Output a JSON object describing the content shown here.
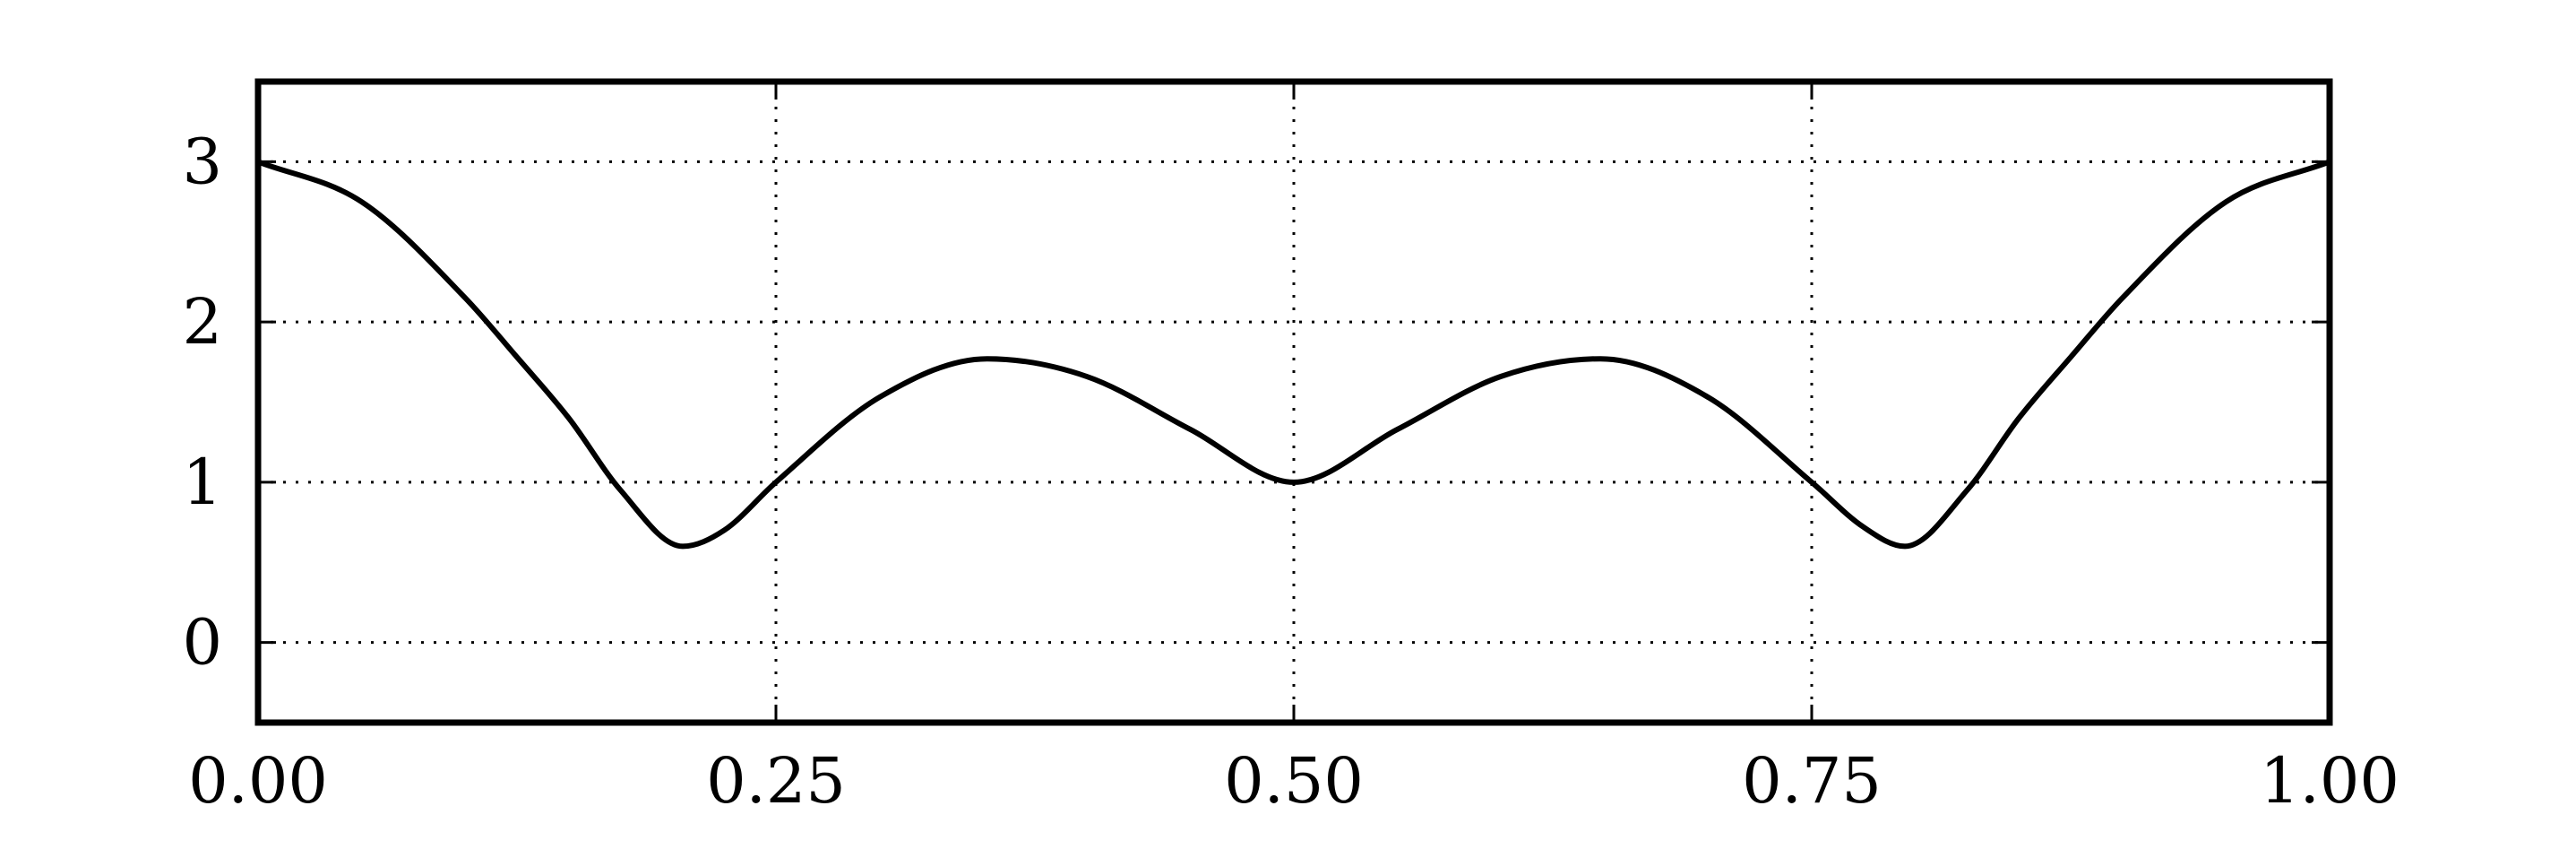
{
  "chart_data": {
    "type": "line",
    "title": "",
    "xlabel": "",
    "ylabel": "",
    "xlim": [
      0.0,
      1.0
    ],
    "ylim": [
      -0.5,
      3.5
    ],
    "xticks": [
      "0.00",
      "0.25",
      "0.50",
      "0.75",
      "1.00"
    ],
    "yticks": [
      "0",
      "1",
      "2",
      "3"
    ],
    "grid": true,
    "grid_style": "dotted",
    "line_color": "#000000",
    "series": [
      {
        "x": [
          0.0,
          0.05,
          0.1,
          0.125,
          0.15,
          0.175,
          0.205,
          0.225,
          0.25,
          0.3,
          0.352,
          0.4,
          0.45,
          0.5,
          0.55,
          0.6,
          0.648,
          0.7,
          0.75,
          0.775,
          0.795,
          0.825,
          0.85,
          0.875,
          0.9,
          0.95,
          1.0
        ],
        "y": [
          3.0,
          2.75,
          2.15,
          1.78,
          1.4,
          0.95,
          0.6,
          0.7,
          1.0,
          1.53,
          1.77,
          1.66,
          1.33,
          1.0,
          1.33,
          1.66,
          1.77,
          1.53,
          1.0,
          0.72,
          0.6,
          0.95,
          1.4,
          1.78,
          2.15,
          2.75,
          3.0
        ]
      }
    ]
  }
}
